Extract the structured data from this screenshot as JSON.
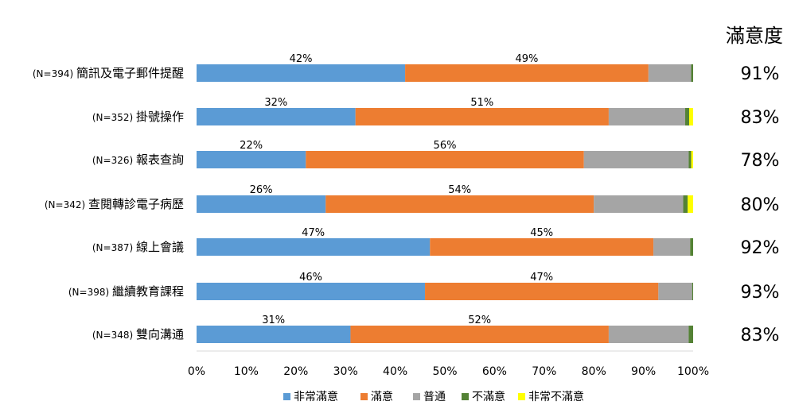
{
  "chart_data": {
    "type": "bar",
    "orientation": "horizontal",
    "stacked": true,
    "categories": [
      {
        "n": "(N=394)",
        "name": "簡訊及電子郵件提醒"
      },
      {
        "n": "(N=352)",
        "name": "掛號操作"
      },
      {
        "n": "(N=326)",
        "name": "報表查詢"
      },
      {
        "n": "(N=342)",
        "name": "查閱轉診電子病歷"
      },
      {
        "n": "(N=387)",
        "name": "線上會議"
      },
      {
        "n": "(N=398)",
        "name": "繼續教育課程"
      },
      {
        "n": "(N=348)",
        "name": "雙向溝通"
      }
    ],
    "series": [
      {
        "name": "非常滿意",
        "color": "#5B9BD5",
        "values": [
          42,
          32,
          22,
          26,
          47,
          46,
          31
        ]
      },
      {
        "name": "滿意",
        "color": "#ED7D31",
        "values": [
          49,
          51,
          56,
          54,
          45,
          47,
          52
        ]
      },
      {
        "name": "普通",
        "color": "#A5A5A5",
        "values": [
          8.6,
          15.4,
          21.1,
          18,
          7.4,
          6.8,
          16.1
        ]
      },
      {
        "name": "不滿意",
        "color": "#548235",
        "values": [
          0.4,
          0.8,
          0.5,
          0.9,
          0.6,
          0.2,
          0.9
        ]
      },
      {
        "name": "非常不滿意",
        "color": "#FFFF00",
        "values": [
          0,
          0.8,
          0.4,
          1.1,
          0,
          0,
          0
        ]
      }
    ],
    "data_labels": {
      "非常滿意": [
        "42%",
        "32%",
        "22%",
        "26%",
        "47%",
        "46%",
        "31%"
      ],
      "滿意": [
        "49%",
        "51%",
        "56%",
        "54%",
        "45%",
        "47%",
        "52%"
      ]
    },
    "x_ticks": [
      "0%",
      "10%",
      "20%",
      "30%",
      "40%",
      "50%",
      "60%",
      "70%",
      "80%",
      "90%",
      "100%"
    ],
    "xlim": [
      0,
      100
    ],
    "satisfaction_header": "滿意度",
    "satisfaction": [
      "91%",
      "83%",
      "78%",
      "80%",
      "92%",
      "93%",
      "83%"
    ],
    "legend_position": "bottom",
    "grid": false
  }
}
